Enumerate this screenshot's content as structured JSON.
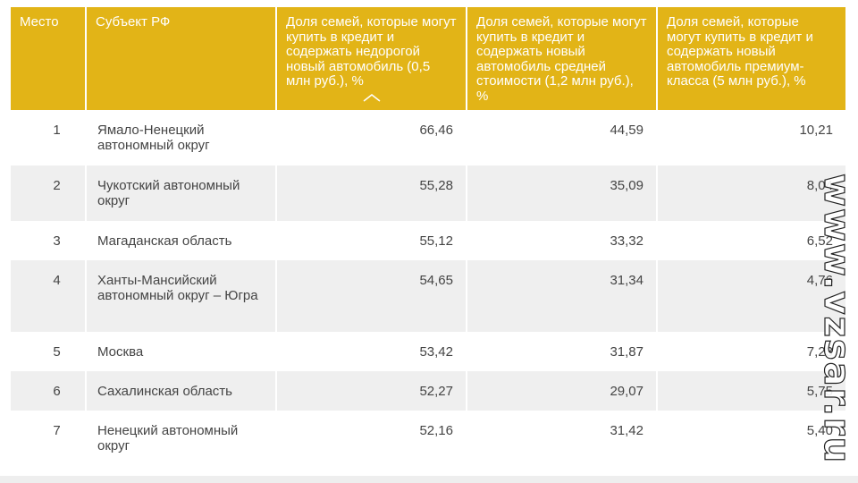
{
  "table": {
    "headers": [
      "Место",
      "Субъект РФ",
      "Доля семей, которые могут купить в кредит и содержать недорогой новый автомобиль (0,5 млн руб.), %",
      "Доля семей, которые могут купить в кредит и содержать новый автомобиль средней стоимости (1,2 млн руб.), %",
      "Доля семей, которые могут купить в кредит и содержать новый автомобиль премиум-класса (5 млн руб.), %"
    ],
    "sort_icon": "chevron-up-icon",
    "rows": [
      [
        "1",
        "Ямало-Ненецкий автономный округ",
        "66,46",
        "44,59",
        "10,21"
      ],
      [
        "2",
        "Чукотский автономный округ",
        "55,28",
        "35,09",
        "8,04"
      ],
      [
        "3",
        "Магаданская область",
        "55,12",
        "33,32",
        "6,52"
      ],
      [
        "4",
        "Ханты-Мансийский автономный округ – Югра",
        "54,65",
        "31,34",
        "4,76"
      ],
      [
        "5",
        "Москва",
        "53,42",
        "31,87",
        "7,23"
      ],
      [
        "6",
        "Сахалинская область",
        "52,27",
        "29,07",
        "5,75"
      ],
      [
        "7",
        "Ненецкий автономный округ",
        "52,16",
        "31,42",
        "5,40"
      ]
    ]
  },
  "watermark": "www.vzsar.ru",
  "colors": {
    "header_bg": "#e2b417",
    "header_text": "#ffffff",
    "stripe_bg": "#efefef",
    "body_text": "#444444"
  }
}
